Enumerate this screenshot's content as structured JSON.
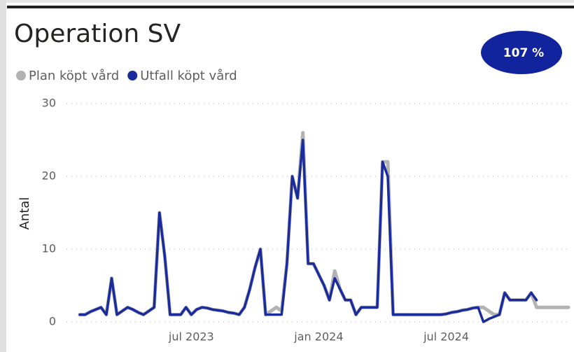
{
  "chart_data": {
    "type": "line",
    "title": "Operation SV",
    "badge": "107 %",
    "y_label": "Antal",
    "categories": [
      null,
      null,
      null,
      null,
      null,
      null,
      null,
      null,
      null,
      null,
      null,
      null,
      null,
      null,
      null,
      null,
      null,
      null,
      null,
      null,
      null,
      "jul 2023",
      null,
      null,
      null,
      null,
      null,
      null,
      null,
      null,
      null,
      null,
      null,
      null,
      null,
      null,
      null,
      null,
      null,
      null,
      null,
      null,
      null,
      null,
      null,
      "jan 2024",
      null,
      null,
      null,
      null,
      null,
      null,
      null,
      null,
      null,
      null,
      null,
      null,
      null,
      null,
      null,
      null,
      null,
      null,
      null,
      null,
      null,
      null,
      null,
      "jul 2024",
      null,
      null,
      null,
      null,
      null,
      null,
      null,
      null,
      null,
      null,
      null,
      null,
      null,
      null,
      null,
      null,
      null,
      null,
      null,
      null,
      null,
      null,
      null
    ],
    "series": [
      {
        "name": "Plan köpt vård",
        "color": "#b3b3b3",
        "values": [
          1,
          1,
          1.4,
          1.7,
          2,
          1,
          6,
          1,
          1.5,
          2,
          1.7,
          1.3,
          1,
          1.5,
          2,
          15,
          9,
          1,
          1,
          1,
          2,
          1,
          1.7,
          2,
          1.9,
          1.7,
          1.6,
          1.5,
          1.3,
          1.2,
          1,
          2,
          4.5,
          7.5,
          10,
          1,
          1.5,
          2,
          1.5,
          8,
          20,
          17,
          26,
          8,
          8,
          6.5,
          5,
          3,
          7,
          4.5,
          3,
          3,
          1,
          2,
          2,
          2,
          2,
          22,
          22,
          1,
          1,
          1,
          1,
          1,
          1,
          1,
          1,
          1,
          1,
          1.1,
          1.3,
          1.4,
          1.6,
          1.7,
          1.9,
          2,
          2,
          1.5,
          1,
          1,
          4,
          3,
          3,
          3,
          3,
          4,
          2,
          2,
          2,
          2,
          2,
          2,
          2
        ]
      },
      {
        "name": "Utfall köpt vård",
        "color": "#1a2b9c",
        "values": [
          1,
          1,
          1.4,
          1.7,
          2,
          1,
          6,
          1,
          1.5,
          2,
          1.7,
          1.3,
          1,
          1.5,
          2,
          15,
          9,
          1,
          1,
          1,
          2,
          1,
          1.7,
          2,
          1.9,
          1.7,
          1.6,
          1.5,
          1.3,
          1.2,
          1,
          2,
          4.5,
          7.5,
          10,
          1,
          1,
          1,
          1,
          8,
          20,
          17,
          25,
          8,
          8,
          6.5,
          5,
          3,
          6,
          4.5,
          3,
          3,
          1,
          2,
          2,
          2,
          2,
          22,
          20,
          1,
          1,
          1,
          1,
          1,
          1,
          1,
          1,
          1,
          1,
          1.1,
          1.3,
          1.4,
          1.6,
          1.7,
          1.9,
          2,
          0,
          0.4,
          0.7,
          1,
          4,
          3,
          3,
          3,
          3,
          4,
          3,
          null,
          null,
          null,
          null,
          null,
          null
        ]
      }
    ],
    "ylim": [
      0,
      30
    ],
    "yticks": [
      0,
      10,
      20,
      30
    ],
    "grid": true
  }
}
